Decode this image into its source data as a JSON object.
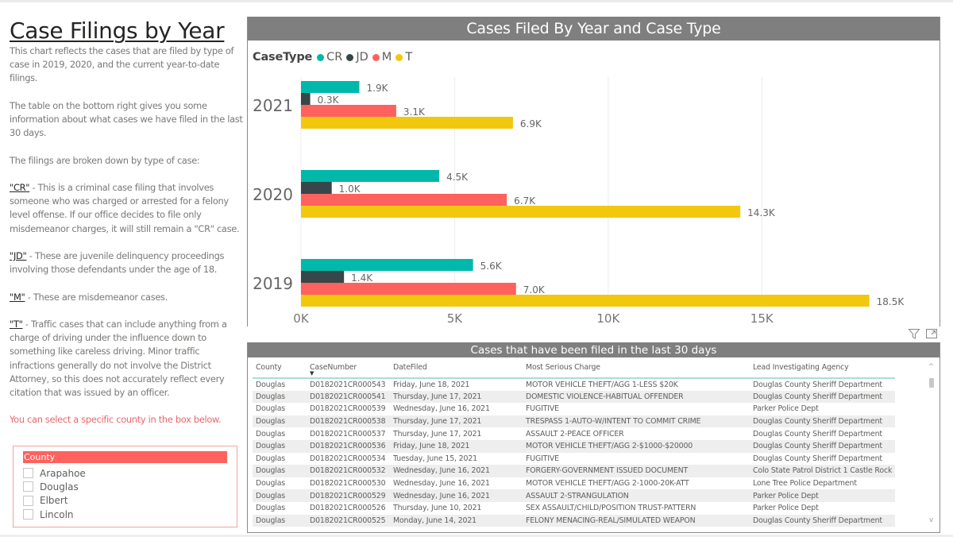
{
  "page": {
    "title": "Case Filings by Year",
    "paragraphs": {
      "intro": "This chart reflects the cases that are filed by type of case in 2019, 2020, and the current year-to-date filings.",
      "table_note": "The table on the bottom right gives you some information about what cases we have filed in the last 30 days.",
      "breakdown": "The filings are broken down by type of case:",
      "cr_term": "\"CR\"",
      "cr_text": " - This is a criminal case filing that involves someone who was charged or arrested for a felony level offense.  If our office decides to file only misdemeanor charges, it will still remain a \"CR\" case.",
      "jd_term": "\"JD\"",
      "jd_text": " - These are juvenile delinquency proceedings involving those defendants under the age of 18.",
      "m_term": "\"M\"",
      "m_text": " - These are misdemeanor cases.",
      "t_term": "\"T\"",
      "t_text": " - Traffic cases that can include anything from a charge of driving under the influence down to something like careless driving.  Minor traffic infractions generally do not involve the District Attorney, so this does not accurately reflect every citation that was issued by an officer.",
      "hint": "You can select a specific county in the box below."
    }
  },
  "slicer": {
    "header": "County",
    "items": [
      {
        "label": "Arapahoe",
        "checked": false
      },
      {
        "label": "Douglas",
        "checked": false
      },
      {
        "label": "Elbert",
        "checked": false
      },
      {
        "label": "Lincoln",
        "checked": false
      }
    ]
  },
  "chart_data": {
    "type": "bar",
    "orientation": "horizontal",
    "title": "Cases Filed By Year and Case Type",
    "legend_title": "CaseType",
    "legend_position": "top-left",
    "categories": [
      "2021",
      "2020",
      "2019"
    ],
    "series": [
      {
        "name": "CR",
        "color": "#01b8aa",
        "values": [
          1900,
          4500,
          5600
        ],
        "labels": [
          "1.9K",
          "4.5K",
          "5.6K"
        ]
      },
      {
        "name": "JD",
        "color": "#374649",
        "values": [
          300,
          1000,
          1400
        ],
        "labels": [
          "0.3K",
          "1.0K",
          "1.4K"
        ]
      },
      {
        "name": "M",
        "color": "#fd625e",
        "values": [
          3100,
          6700,
          7000
        ],
        "labels": [
          "3.1K",
          "6.7K",
          "7.0K"
        ]
      },
      {
        "name": "T",
        "color": "#f2c80f",
        "values": [
          6900,
          14300,
          18500
        ],
        "labels": [
          "6.9K",
          "14.3K",
          "18.5K"
        ]
      }
    ],
    "xticks": [
      0,
      5000,
      10000,
      15000
    ],
    "xtick_labels": [
      "0K",
      "5K",
      "10K",
      "15K"
    ],
    "xlim": [
      0,
      19000
    ],
    "xlabel": "",
    "ylabel": "",
    "grid": true
  },
  "visual_icons": {
    "filter": "filter-icon",
    "focus": "focus-mode-icon"
  },
  "table": {
    "title": "Cases that have been filed in the last 30 days",
    "columns": [
      "County",
      "CaseNumber",
      "DateFiled",
      "Most Serious Charge",
      "Lead Investigating Agency"
    ],
    "sorted_column": "CaseNumber",
    "sort_direction": "descending",
    "rows": [
      [
        "Douglas",
        "D0182021CR000543",
        "Friday, June 18, 2021",
        "MOTOR VEHICLE THEFT/AGG 1-LESS $20K",
        "Douglas County Sheriff Department"
      ],
      [
        "Douglas",
        "D0182021CR000541",
        "Thursday, June 17, 2021",
        "DOMESTIC VIOLENCE-HABITUAL OFFENDER",
        "Douglas County Sheriff Department"
      ],
      [
        "Douglas",
        "D0182021CR000539",
        "Wednesday, June 16, 2021",
        "FUGITIVE",
        "Parker Police Dept"
      ],
      [
        "Douglas",
        "D0182021CR000538",
        "Thursday, June 17, 2021",
        "TRESPASS 1-AUTO-W/INTENT TO COMMIT CRIME",
        "Douglas County Sheriff Department"
      ],
      [
        "Douglas",
        "D0182021CR000537",
        "Thursday, June 17, 2021",
        "ASSAULT 2-PEACE OFFICER",
        "Douglas County Sheriff Department"
      ],
      [
        "Douglas",
        "D0182021CR000536",
        "Friday, June 18, 2021",
        "MOTOR VEHICLE THEFT/AGG 2-$1000-$20000",
        "Douglas County Sheriff Department"
      ],
      [
        "Douglas",
        "D0182021CR000534",
        "Tuesday, June 15, 2021",
        "FUGITIVE",
        "Douglas County Sheriff Department"
      ],
      [
        "Douglas",
        "D0182021CR000532",
        "Wednesday, June 16, 2021",
        "FORGERY-GOVERNMENT ISSUED DOCUMENT",
        "Colo State Patrol District 1 Castle Rock"
      ],
      [
        "Douglas",
        "D0182021CR000530",
        "Wednesday, June 16, 2021",
        "MOTOR VEHICLE THEFT/AGG 2-1000-20K-ATT",
        "Lone Tree Police Department"
      ],
      [
        "Douglas",
        "D0182021CR000529",
        "Wednesday, June 16, 2021",
        "ASSAULT 2-STRANGULATION",
        "Parker Police Dept"
      ],
      [
        "Douglas",
        "D0182021CR000526",
        "Thursday, June 10, 2021",
        "SEX ASSAULT/CHILD/POSITION TRUST-PATTERN",
        "Parker Police Dept"
      ],
      [
        "Douglas",
        "D0182021CR000525",
        "Monday, June 14, 2021",
        "FELONY MENACING-REAL/SIMULATED WEAPON",
        "Douglas County Sheriff Department"
      ]
    ]
  },
  "scrollbar": {
    "up_glyph": "^",
    "down_glyph": "v"
  }
}
